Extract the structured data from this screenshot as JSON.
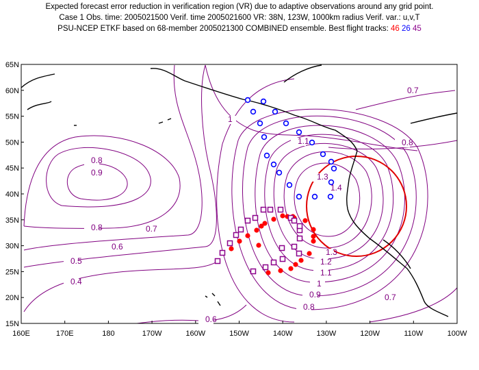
{
  "header": {
    "line1": "Expected forecast error reduction in verification region (VR) due to adaptive observations around any grid point.",
    "line2": "Case 1   Obs. time: 2005021500   Verif. time 2005021600   VR: 38N, 123W, 1000km radius   Verif. var.: u,v,T",
    "line3_prefix": "PSU-NCEP ETKF based on 68-member 2005021300 COMBINED ensemble.  Best flight tracks:",
    "tracks": [
      "46",
      "26",
      "45"
    ]
  },
  "colors": {
    "contour": "#800080",
    "track_red": "#ff0000",
    "track_blue": "#0000ff",
    "track_purple": "#8b008b",
    "coast": "#000000",
    "verif_circle": "#e00000"
  },
  "axes": {
    "y_labels": [
      "65N",
      "60N",
      "55N",
      "50N",
      "45N",
      "40N",
      "35N",
      "30N",
      "25N",
      "20N",
      "15N"
    ],
    "x_labels": [
      "160E",
      "170E",
      "180",
      "170W",
      "160W",
      "150W",
      "140W",
      "130W",
      "120W",
      "110W",
      "100W"
    ]
  },
  "contour_labels": [
    "0.7",
    "1",
    "0.8",
    "0.8",
    "0.9",
    "1.1",
    "1.3",
    "1.4",
    "0.8",
    "0.7",
    "0.6",
    "0.5",
    "0.4",
    "1.3",
    "1.2",
    "1.1",
    "1",
    "0.9",
    "0.8",
    "0.7",
    "0.6"
  ],
  "tracks": {
    "red_count": 22,
    "blue_count": 20,
    "purple_count": 22
  }
}
